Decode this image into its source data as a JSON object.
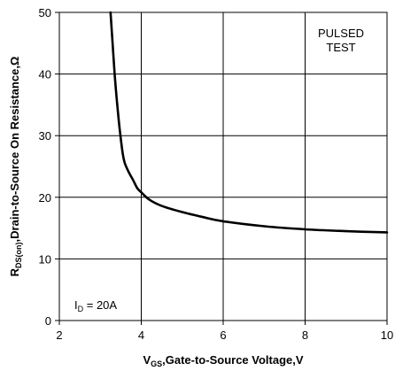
{
  "chart_data": {
    "type": "line",
    "xlabel": {
      "main": "V",
      "sub": "GS",
      "rest": ",Gate-to-Source Voltage,V"
    },
    "ylabel": {
      "main": "R",
      "sub": "DS(on)",
      "rest": ",Drain-to-Source On Resistance,Ω"
    },
    "xlim": [
      2,
      10
    ],
    "ylim": [
      0,
      50
    ],
    "xticks": [
      2,
      4,
      6,
      8,
      10
    ],
    "yticks": [
      0,
      10,
      20,
      30,
      40,
      50
    ],
    "grid": true,
    "annotations": {
      "pulsed_line1": "PULSED",
      "pulsed_line2": "TEST",
      "id_main": "I",
      "id_sub": "D",
      "id_rest": " = 20A"
    },
    "series": [
      {
        "x": [
          3.25,
          3.3,
          3.35,
          3.4,
          3.45,
          3.5,
          3.55,
          3.6,
          3.7,
          3.8,
          3.9,
          4.0,
          4.2,
          4.5,
          5.0,
          5.5,
          6.0,
          7.0,
          8.0,
          9.0,
          10.0
        ],
        "values": [
          50,
          45,
          40,
          36,
          32.5,
          29.5,
          27,
          25.5,
          24,
          22.8,
          21.5,
          20.8,
          19.6,
          18.6,
          17.6,
          16.8,
          16.1,
          15.3,
          14.8,
          14.5,
          14.3
        ]
      }
    ]
  }
}
